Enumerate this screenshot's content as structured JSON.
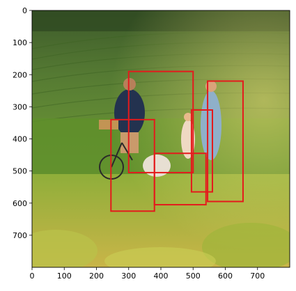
{
  "image": {
    "description_tag": "photo",
    "x_ticks": [
      "0",
      "100",
      "200",
      "300",
      "400",
      "500",
      "600",
      "700"
    ],
    "y_ticks": [
      "0",
      "100",
      "200",
      "300",
      "400",
      "500",
      "600",
      "700"
    ],
    "x_tick_values": [
      0,
      100,
      200,
      300,
      400,
      500,
      600,
      700
    ],
    "y_tick_values": [
      0,
      100,
      200,
      300,
      400,
      500,
      600,
      700
    ],
    "x_range": [
      0,
      800
    ],
    "y_range": [
      0,
      800
    ],
    "box_color": "#e41a1c",
    "boxes": [
      {
        "label": "man",
        "x0": 300,
        "y0": 190,
        "x1": 500,
        "y1": 505
      },
      {
        "label": "bicycle",
        "x0": 245,
        "y0": 340,
        "x1": 380,
        "y1": 625
      },
      {
        "label": "dog",
        "x0": 380,
        "y0": 445,
        "x1": 540,
        "y1": 605
      },
      {
        "label": "child",
        "x0": 495,
        "y0": 310,
        "x1": 560,
        "y1": 565
      },
      {
        "label": "woman",
        "x0": 545,
        "y0": 220,
        "x1": 655,
        "y1": 595
      }
    ]
  }
}
